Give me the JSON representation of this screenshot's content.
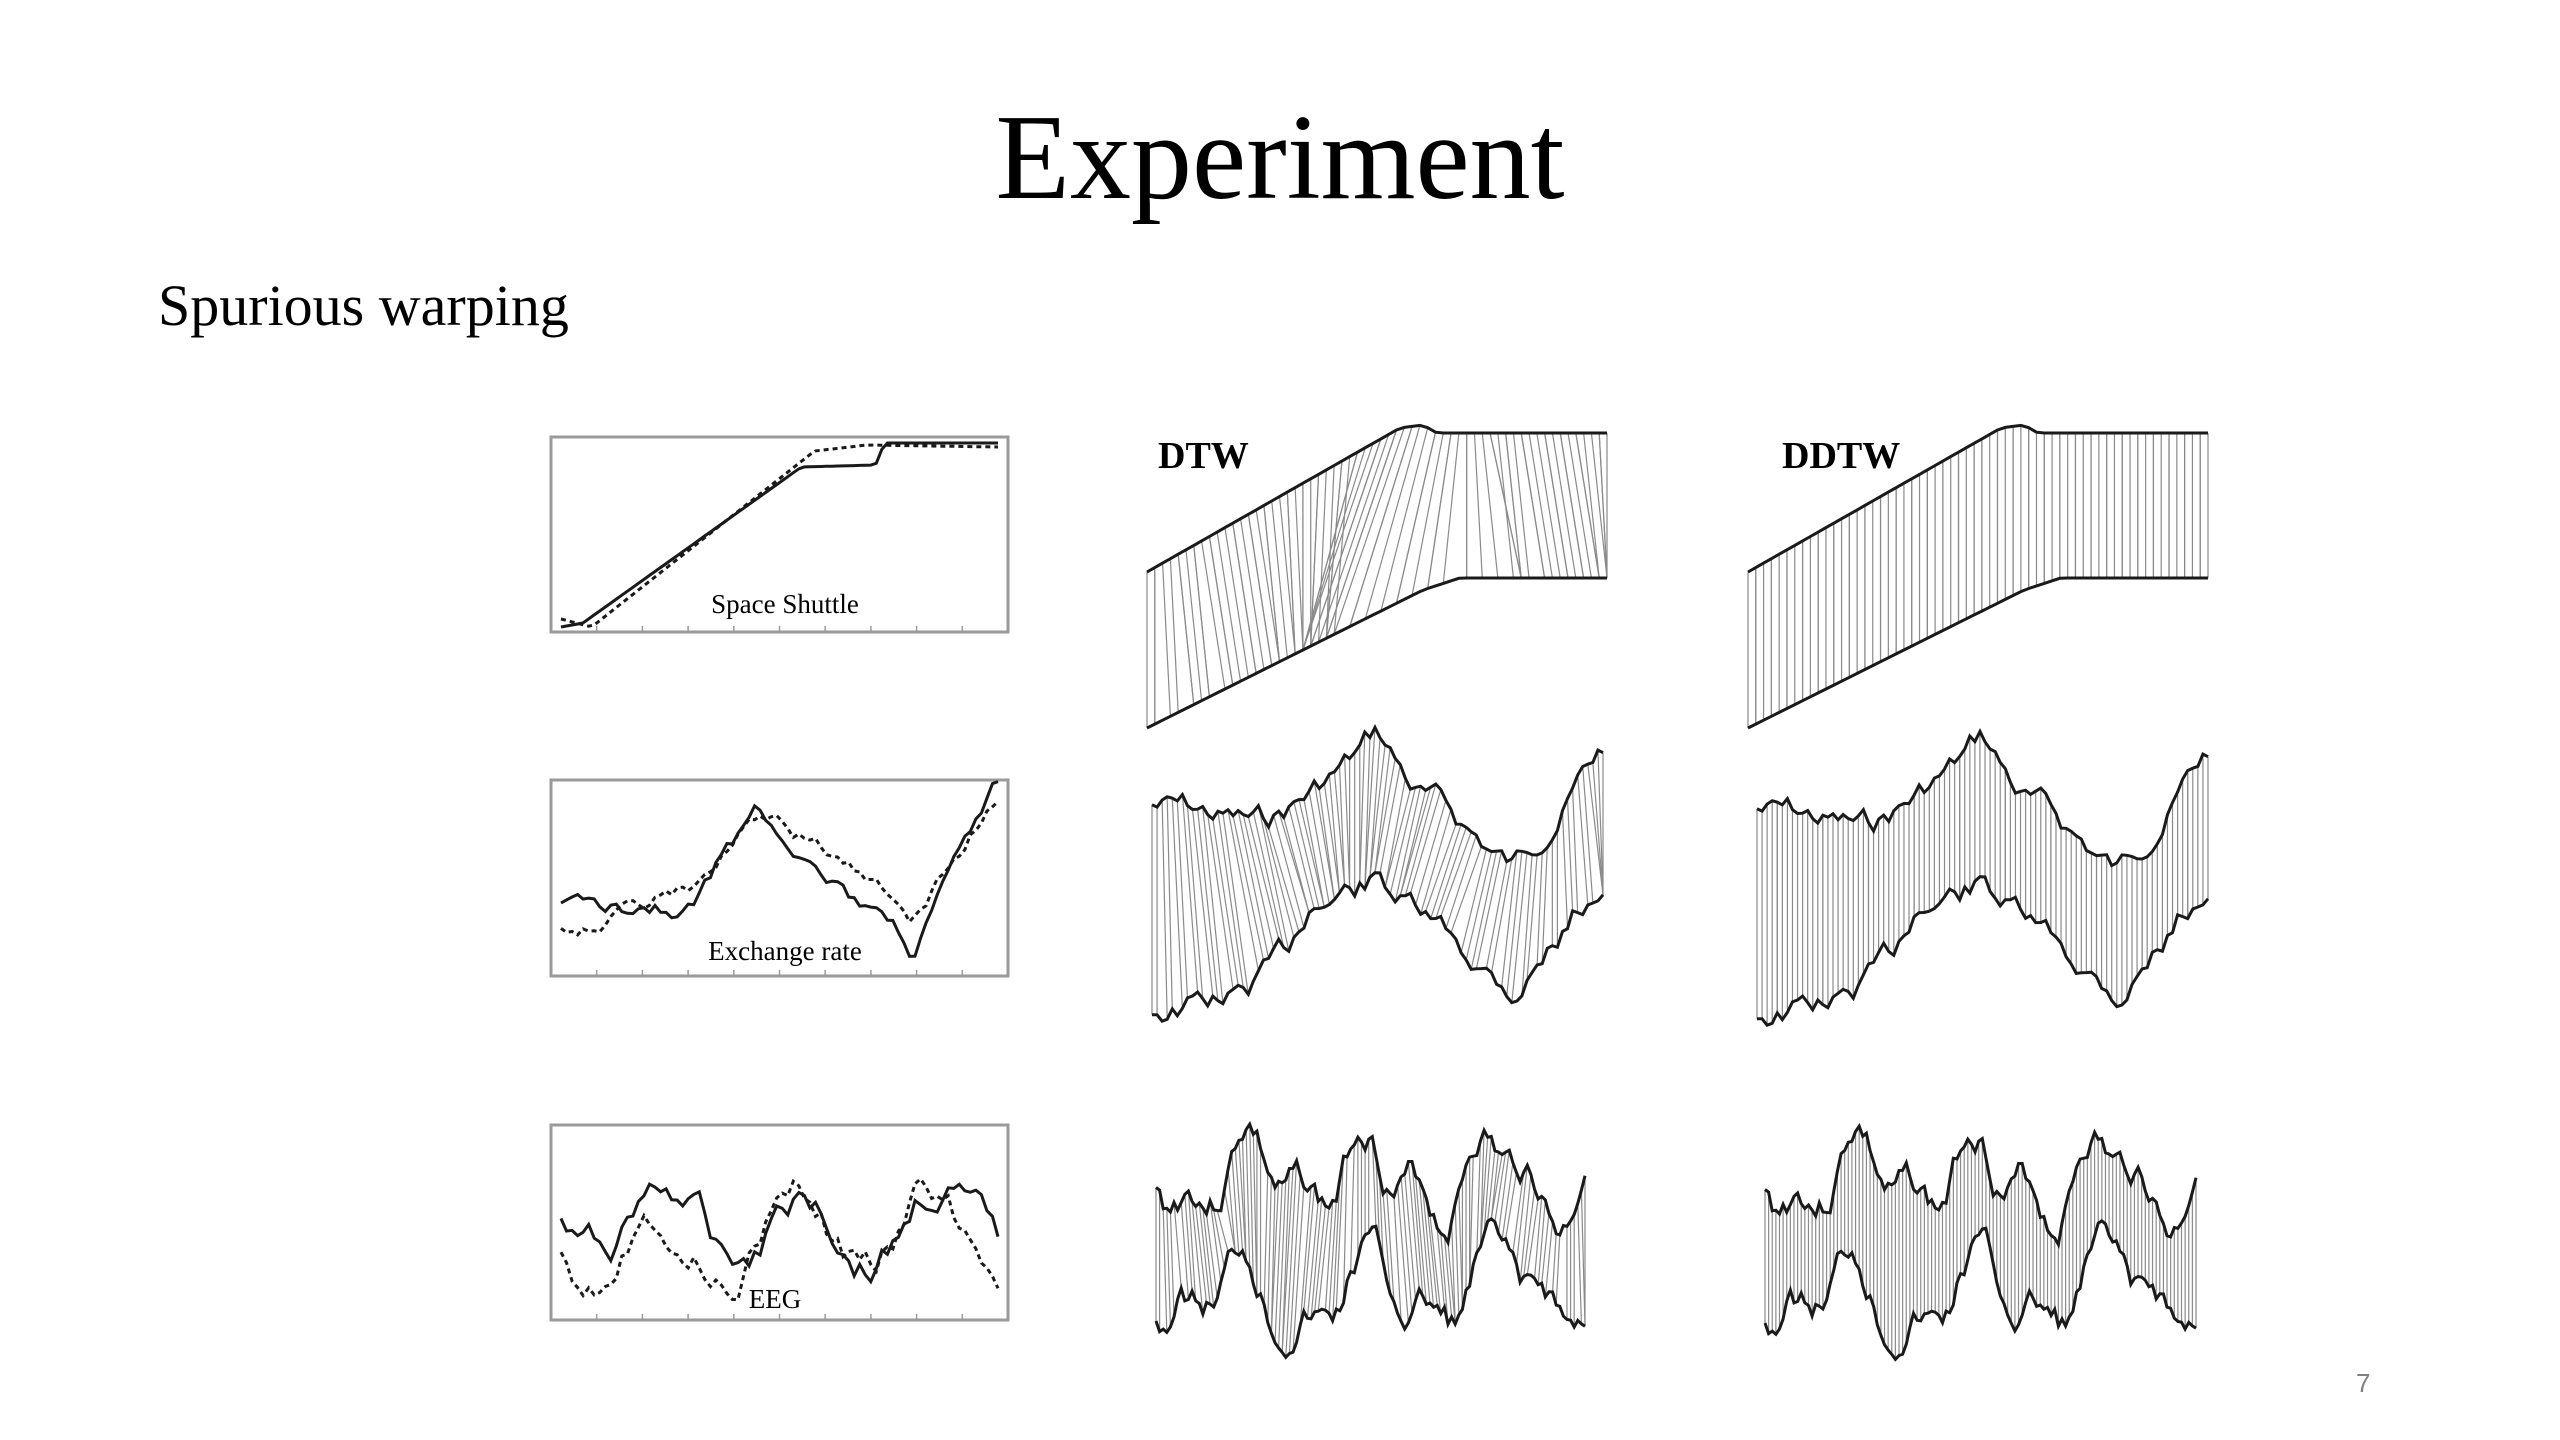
{
  "slide": {
    "title": "Experiment",
    "subtitle": "Spurious warping",
    "page_number": "7"
  },
  "figure": {
    "column_labels": [
      "DTW",
      "DDTW"
    ],
    "datasets": [
      {
        "id": "space-shuttle",
        "label": "Space Shuttle"
      },
      {
        "id": "exchange-rate",
        "label": "Exchange rate"
      },
      {
        "id": "eeg",
        "label": "EEG"
      }
    ]
  },
  "colors": {
    "text": "#000000",
    "series_line": "#1a1a1a",
    "warping_line": "#8a8a8a",
    "plot_frame": "#9a9a9a",
    "page_number": "#7f7f7f"
  }
}
